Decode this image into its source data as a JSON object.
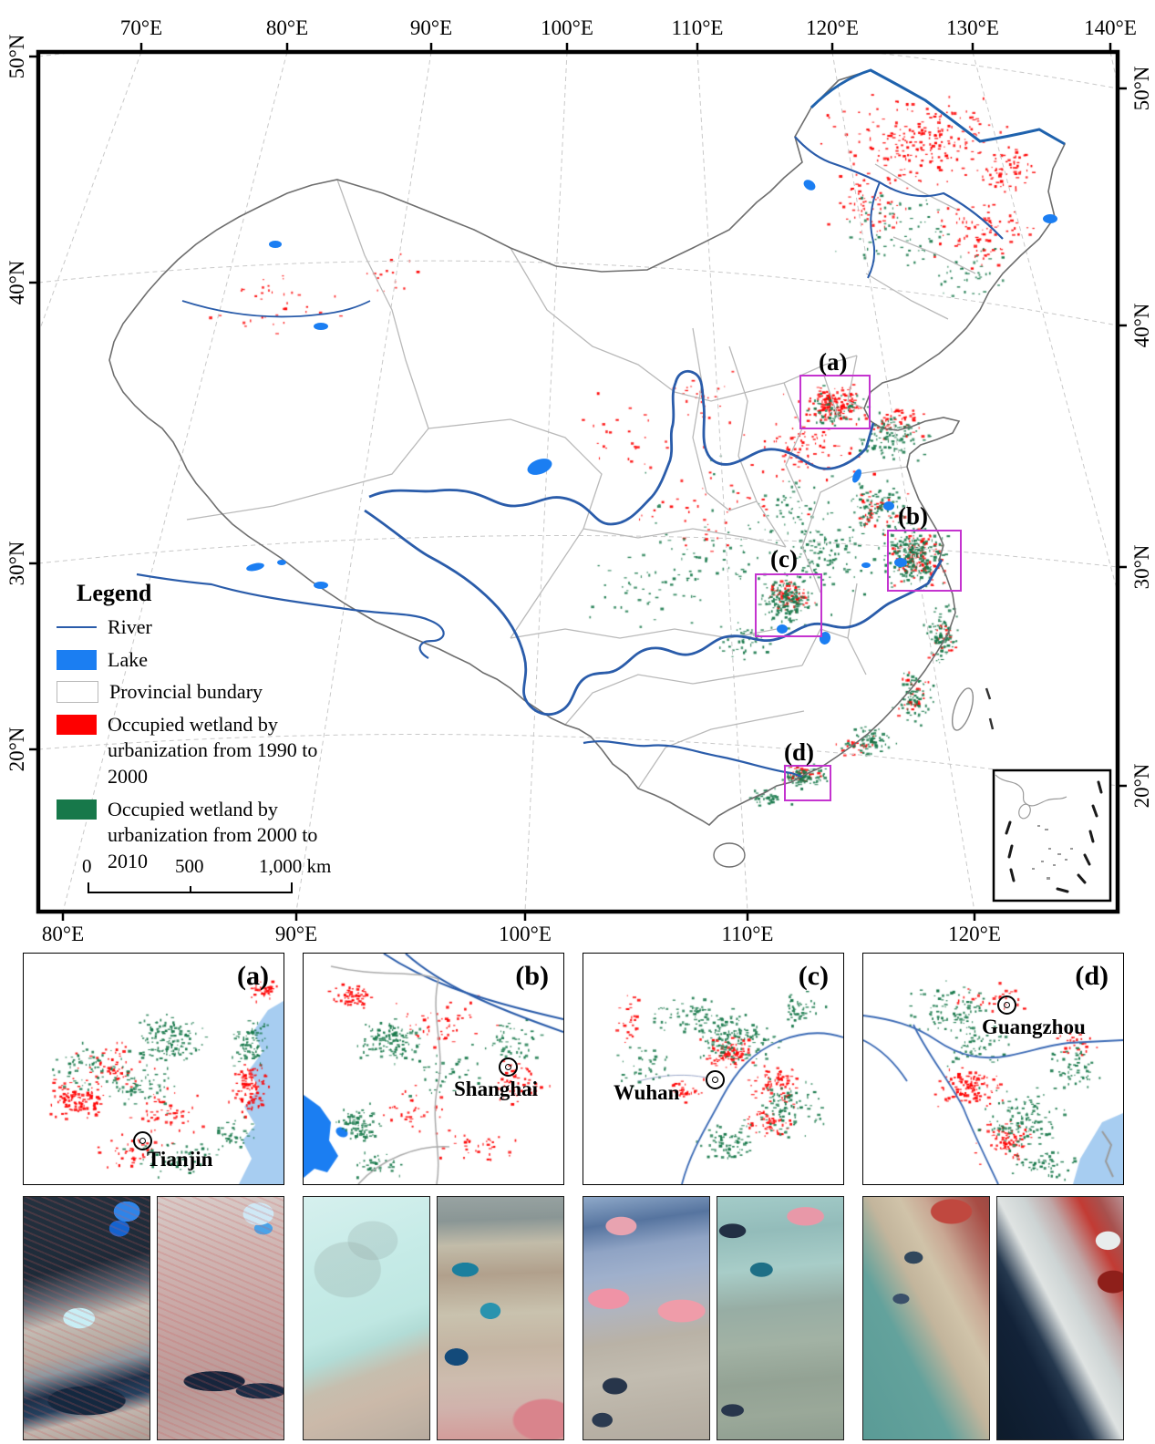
{
  "map": {
    "top_axis": [
      "70°E",
      "80°E",
      "90°E",
      "100°E",
      "110°E",
      "120°E",
      "130°E",
      "140°E"
    ],
    "bottom_axis": [
      "80°E",
      "90°E",
      "100°E",
      "110°E",
      "120°E"
    ],
    "left_axis": [
      "50°N",
      "40°N",
      "30°N",
      "20°N"
    ],
    "right_axis": [
      "50°N",
      "40°N",
      "30°N",
      "20°N"
    ],
    "region_labels": [
      "(a)",
      "(b)",
      "(c)",
      "(d)"
    ],
    "legend": {
      "title": "Legend",
      "river": "River",
      "lake": "Lake",
      "provincial": "Provincial bundary",
      "occupied_1990_line1": "Occupied wetland by",
      "occupied_1990_line2": "urbanization from 1990 to 2000",
      "occupied_2000_line1": "Occupied wetland by",
      "occupied_2000_line2": "urbanization from 2000 to 2010"
    },
    "scalebar": {
      "zero": "0",
      "mid": "500",
      "end": "1,000 km"
    }
  },
  "panels": [
    {
      "label": "(a)",
      "city": "Tianjin"
    },
    {
      "label": "(b)",
      "city": "Shanghai"
    },
    {
      "label": "(c)",
      "city": "Wuhan"
    },
    {
      "label": "(d)",
      "city": "Guangzhou"
    }
  ],
  "colors": {
    "occupied_1990": "#fe0000",
    "occupied_2000": "#17784a",
    "river": "#2a5caa",
    "lake": "#1b7ef2",
    "sea": "#a7cdf1",
    "inset_box": "#c433cf",
    "national_boundary": "#6e6e6e",
    "provincial_boundary": "#b9b9b9"
  },
  "chart_data": {
    "type": "map",
    "title": "Wetland occupied by urbanization in China, 1990-2010",
    "extent": {
      "lon": [
        70,
        140
      ],
      "lat": [
        20,
        50
      ]
    },
    "classes": [
      {
        "name": "Occupied wetland by urbanization from 1990 to 2000",
        "color": "#fe0000"
      },
      {
        "name": "Occupied wetland by urbanization from 2000 to 2010",
        "color": "#17784a"
      }
    ],
    "highlight_regions": [
      {
        "id": "(a)",
        "city": "Tianjin"
      },
      {
        "id": "(b)",
        "city": "Shanghai"
      },
      {
        "id": "(c)",
        "city": "Wuhan"
      },
      {
        "id": "(d)",
        "city": "Guangzhou"
      }
    ],
    "scalebar_km": [
      0,
      500,
      1000
    ]
  }
}
